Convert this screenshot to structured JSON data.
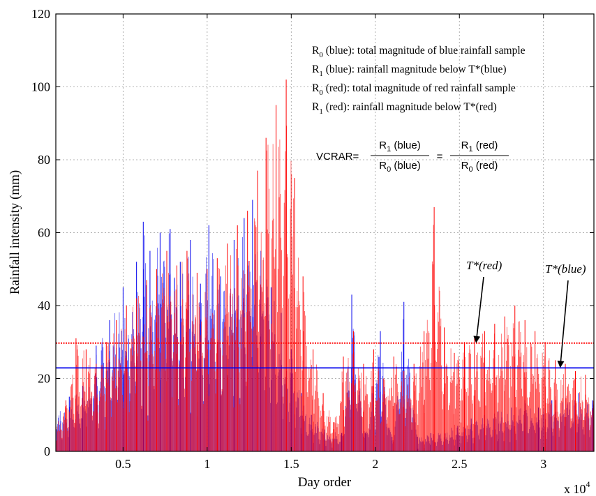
{
  "chart_data": {
    "type": "line",
    "xlabel": "Day order",
    "ylabel": "Rainfall intensity (mm)",
    "x_multiplier_label": "x 10",
    "x_multiplier_exp": "4",
    "xlim": [
      1000,
      33000
    ],
    "ylim": [
      0,
      120
    ],
    "x_ticks": [
      5000,
      10000,
      15000,
      20000,
      25000,
      30000
    ],
    "x_tick_labels": [
      "0.5",
      "1",
      "1.5",
      "2",
      "2.5",
      "3"
    ],
    "y_ticks": [
      0,
      20,
      40,
      60,
      80,
      100,
      120
    ],
    "y_tick_labels": [
      "0",
      "20",
      "40",
      "60",
      "80",
      "100",
      "120"
    ],
    "grid": true,
    "series": [
      {
        "color": "#0000ee",
        "style": "spikes",
        "peaks": [
          {
            "x": 1000,
            "y": 12
          },
          {
            "x": 1800,
            "y": 15
          },
          {
            "x": 2600,
            "y": 18
          },
          {
            "x": 3400,
            "y": 29
          },
          {
            "x": 4200,
            "y": 36
          },
          {
            "x": 5000,
            "y": 45
          },
          {
            "x": 5800,
            "y": 52
          },
          {
            "x": 6200,
            "y": 63
          },
          {
            "x": 6600,
            "y": 55
          },
          {
            "x": 7200,
            "y": 60
          },
          {
            "x": 7800,
            "y": 61
          },
          {
            "x": 8400,
            "y": 52
          },
          {
            "x": 9000,
            "y": 58
          },
          {
            "x": 9600,
            "y": 46
          },
          {
            "x": 10100,
            "y": 62
          },
          {
            "x": 10800,
            "y": 48
          },
          {
            "x": 11600,
            "y": 58
          },
          {
            "x": 12200,
            "y": 64
          },
          {
            "x": 12700,
            "y": 69
          },
          {
            "x": 13200,
            "y": 55
          },
          {
            "x": 13800,
            "y": 45
          },
          {
            "x": 14400,
            "y": 38
          },
          {
            "x": 15000,
            "y": 28
          },
          {
            "x": 15600,
            "y": 16
          },
          {
            "x": 16200,
            "y": 10
          },
          {
            "x": 17000,
            "y": 6
          },
          {
            "x": 18000,
            "y": 5
          },
          {
            "x": 18600,
            "y": 43
          },
          {
            "x": 19400,
            "y": 5
          },
          {
            "x": 20300,
            "y": 33
          },
          {
            "x": 21000,
            "y": 4
          },
          {
            "x": 21700,
            "y": 41
          },
          {
            "x": 22500,
            "y": 4
          },
          {
            "x": 23300,
            "y": 5
          },
          {
            "x": 24100,
            "y": 6
          },
          {
            "x": 24900,
            "y": 7
          },
          {
            "x": 25700,
            "y": 9
          },
          {
            "x": 26500,
            "y": 10
          },
          {
            "x": 27300,
            "y": 11
          },
          {
            "x": 28100,
            "y": 12
          },
          {
            "x": 28900,
            "y": 14
          },
          {
            "x": 29700,
            "y": 12
          },
          {
            "x": 30500,
            "y": 14
          },
          {
            "x": 31300,
            "y": 15
          },
          {
            "x": 32100,
            "y": 16
          },
          {
            "x": 32900,
            "y": 14
          }
        ]
      },
      {
        "color": "#ff0000",
        "style": "spikes",
        "peaks": [
          {
            "x": 1000,
            "y": 8
          },
          {
            "x": 1600,
            "y": 14
          },
          {
            "x": 2200,
            "y": 31
          },
          {
            "x": 2800,
            "y": 28
          },
          {
            "x": 3400,
            "y": 24
          },
          {
            "x": 4000,
            "y": 30
          },
          {
            "x": 4600,
            "y": 36
          },
          {
            "x": 5200,
            "y": 40
          },
          {
            "x": 5800,
            "y": 42
          },
          {
            "x": 6400,
            "y": 47
          },
          {
            "x": 7000,
            "y": 50
          },
          {
            "x": 7600,
            "y": 55
          },
          {
            "x": 8200,
            "y": 51
          },
          {
            "x": 8800,
            "y": 55
          },
          {
            "x": 9400,
            "y": 49
          },
          {
            "x": 10000,
            "y": 50
          },
          {
            "x": 10600,
            "y": 53
          },
          {
            "x": 11200,
            "y": 57
          },
          {
            "x": 11800,
            "y": 62
          },
          {
            "x": 12400,
            "y": 66
          },
          {
            "x": 13000,
            "y": 77
          },
          {
            "x": 13500,
            "y": 86
          },
          {
            "x": 14100,
            "y": 95
          },
          {
            "x": 14700,
            "y": 102
          },
          {
            "x": 15200,
            "y": 75
          },
          {
            "x": 15700,
            "y": 48
          },
          {
            "x": 16300,
            "y": 28
          },
          {
            "x": 16900,
            "y": 16
          },
          {
            "x": 17500,
            "y": 8
          },
          {
            "x": 18100,
            "y": 26
          },
          {
            "x": 18700,
            "y": 33
          },
          {
            "x": 19300,
            "y": 24
          },
          {
            "x": 19900,
            "y": 28
          },
          {
            "x": 20500,
            "y": 20
          },
          {
            "x": 21100,
            "y": 26
          },
          {
            "x": 21700,
            "y": 22
          },
          {
            "x": 22300,
            "y": 24
          },
          {
            "x": 22900,
            "y": 33
          },
          {
            "x": 23500,
            "y": 67
          },
          {
            "x": 24100,
            "y": 34
          },
          {
            "x": 24700,
            "y": 27
          },
          {
            "x": 25300,
            "y": 30
          },
          {
            "x": 25900,
            "y": 31
          },
          {
            "x": 26500,
            "y": 33
          },
          {
            "x": 27100,
            "y": 35
          },
          {
            "x": 27700,
            "y": 37
          },
          {
            "x": 28300,
            "y": 40
          },
          {
            "x": 28900,
            "y": 36
          },
          {
            "x": 29500,
            "y": 33
          },
          {
            "x": 30100,
            "y": 30
          },
          {
            "x": 30700,
            "y": 25
          },
          {
            "x": 31300,
            "y": 24
          },
          {
            "x": 31900,
            "y": 22
          },
          {
            "x": 32500,
            "y": 21
          },
          {
            "x": 33000,
            "y": 18
          }
        ]
      }
    ],
    "thresholds": [
      {
        "name": "T*(red)",
        "value": 29.7,
        "color": "#ff0000",
        "style": "dotted"
      },
      {
        "name": "T*(blue)",
        "value": 22.9,
        "color": "#0000ee",
        "style": "solid"
      }
    ],
    "legend": [
      {
        "sym": "R",
        "sub": "0",
        "text": " (blue): total magnitude of blue rainfall sample"
      },
      {
        "sym": "R",
        "sub": "1",
        "text": " (blue): rainfall magnitude below T*(blue)"
      },
      {
        "sym": "R",
        "sub": "0",
        "text": " (red): total magnitude of red rainfall sample"
      },
      {
        "sym": "R",
        "sub": "1",
        "text": " (red): rainfall magnitude below T*(red)"
      }
    ],
    "formula": {
      "lhs": "VCRAR=",
      "frac1": {
        "num_sym": "R",
        "num_sub": "1",
        "num_text": " (blue)",
        "den_sym": "R",
        "den_sub": "0",
        "den_text": " (blue)"
      },
      "eq": "=",
      "frac2": {
        "num_sym": "R",
        "num_sub": "1",
        "num_text": " (red)",
        "den_sym": "R",
        "den_sub": "0",
        "den_text": " (red)"
      }
    },
    "annotations": [
      {
        "text": "T*(red)",
        "arrow_to": {
          "x": 26000,
          "y": 29.7
        }
      },
      {
        "text": "T*(blue)",
        "arrow_to": {
          "x": 31000,
          "y": 22.9
        }
      }
    ]
  }
}
